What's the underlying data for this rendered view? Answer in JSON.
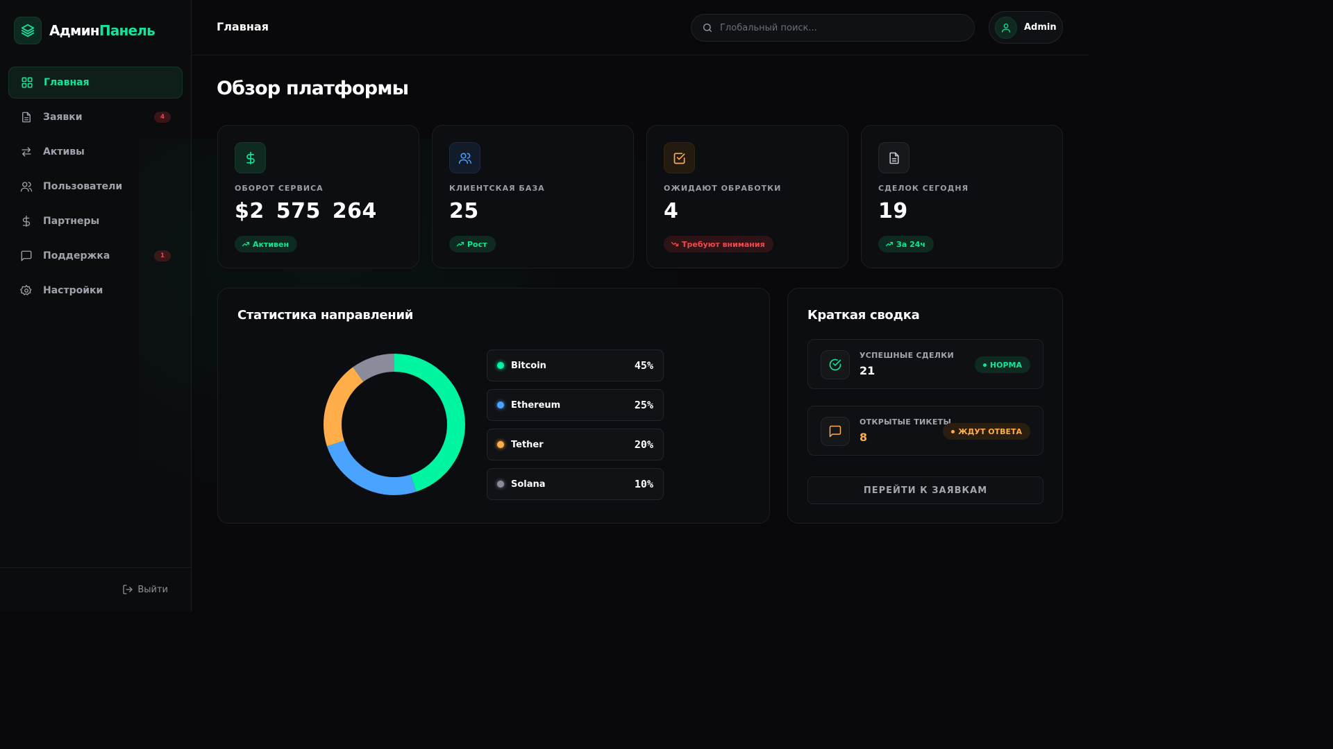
{
  "brand": {
    "part1": "Админ",
    "part2": "Панель"
  },
  "sidebar": {
    "items": [
      {
        "label": "Главная",
        "icon": "grid-icon",
        "active": true
      },
      {
        "label": "Заявки",
        "icon": "document-icon",
        "badge": "4"
      },
      {
        "label": "Активы",
        "icon": "swap-arrows-icon"
      },
      {
        "label": "Пользователи",
        "icon": "users-icon"
      },
      {
        "label": "Партнеры",
        "icon": "dollar-icon"
      },
      {
        "label": "Поддержка",
        "icon": "chat-bubble-icon",
        "badge": "1"
      },
      {
        "label": "Настройки",
        "icon": "gear-icon"
      }
    ],
    "logout_label": "Выйти"
  },
  "header": {
    "title": "Главная",
    "search_placeholder": "Глобальный поиск...",
    "user_name": "Admin"
  },
  "main": {
    "page_title": "Обзор платформы",
    "stats": [
      {
        "label": "ОБОРОТ СЕРВИСА",
        "value": "$2 575 264",
        "pill": "Активен",
        "trend": "up",
        "icon": "dollar-icon",
        "accent": "#10e59b"
      },
      {
        "label": "КЛИЕНТСКАЯ БАЗА",
        "value": "25",
        "pill": "Рост",
        "trend": "up",
        "icon": "users-icon",
        "accent": "#4aa3ff"
      },
      {
        "label": "ОЖИДАЮТ ОБРАБОТКИ",
        "value": "4",
        "pill": "Требуют внимания",
        "trend": "down",
        "icon": "checkbox-icon",
        "accent": "#ffae4a"
      },
      {
        "label": "СДЕЛОК СЕГОДНЯ",
        "value": "19",
        "pill": "За 24ч",
        "trend": "up",
        "icon": "document-icon",
        "accent": "#c9cbd1"
      }
    ],
    "directions": {
      "title": "Статистика направлений"
    },
    "summary": {
      "title": "Краткая сводка",
      "success_label": "УСПЕШНЫЕ СДЕЛКИ",
      "success_value": "21",
      "success_badge": "НОРМА",
      "tickets_label": "ОТКРЫТЫЕ ТИКЕТЫ",
      "tickets_value": "8",
      "tickets_badge": "ЖДУТ ОТВЕТА",
      "button_label": "ПЕРЕЙТИ К ЗАЯВКАМ"
    }
  },
  "colors": {
    "accent": "#10e59b",
    "bitcoin": "#00f5a0",
    "ethereum": "#4aa3ff",
    "tether": "#ffae4a",
    "solana": "#8a8c9c",
    "danger": "#ef4a50"
  },
  "chart_data": {
    "type": "pie",
    "categories": [
      "Bitcoin",
      "Ethereum",
      "Tether",
      "Solana"
    ],
    "values": [
      45,
      25,
      20,
      10
    ],
    "labels": [
      "45%",
      "25%",
      "20%",
      "10%"
    ],
    "colors": [
      "#00f5a0",
      "#4aa3ff",
      "#ffae4a",
      "#8a8c9c"
    ],
    "donut": true
  }
}
